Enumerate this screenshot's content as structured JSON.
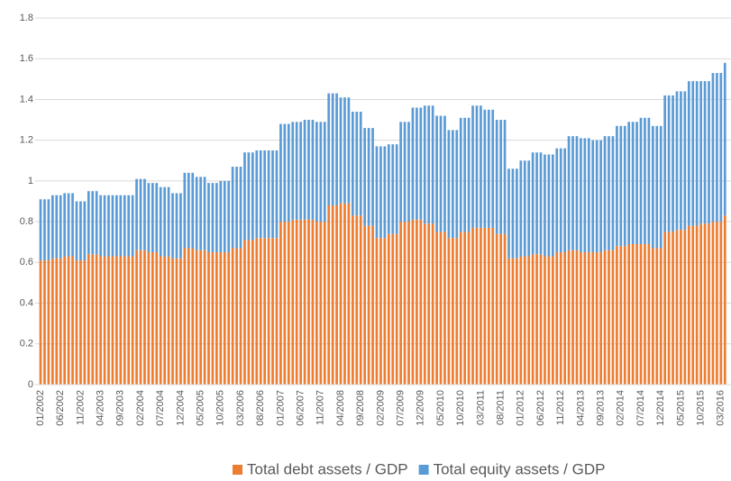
{
  "chart_data": {
    "type": "stacked_bar",
    "categories": [
      "01/2002",
      null,
      null,
      null,
      null,
      "06/2002",
      null,
      null,
      null,
      null,
      "11/2002",
      null,
      null,
      null,
      null,
      "04/2003",
      null,
      null,
      null,
      null,
      "09/2003",
      null,
      null,
      null,
      null,
      "02/2004",
      null,
      null,
      null,
      null,
      "07/2004",
      null,
      null,
      null,
      null,
      "12/2004",
      null,
      null,
      null,
      null,
      "05/2005",
      null,
      null,
      null,
      null,
      "10/2005",
      null,
      null,
      null,
      null,
      "03/2006",
      null,
      null,
      null,
      null,
      "08/2006",
      null,
      null,
      null,
      null,
      "01/2007",
      null,
      null,
      null,
      null,
      "06/2007",
      null,
      null,
      null,
      null,
      "11/2007",
      null,
      null,
      null,
      null,
      "04/2008",
      null,
      null,
      null,
      null,
      "09/2008",
      null,
      null,
      null,
      null,
      "02/2009",
      null,
      null,
      null,
      null,
      "07/2009",
      null,
      null,
      null,
      null,
      "12/2009",
      null,
      null,
      null,
      null,
      "05/2010",
      null,
      null,
      null,
      null,
      "10/2010",
      null,
      null,
      null,
      null,
      "03/2011",
      null,
      null,
      null,
      null,
      "08/2011",
      null,
      null,
      null,
      null,
      "01/2012",
      null,
      null,
      null,
      null,
      "06/2012",
      null,
      null,
      null,
      null,
      "11/2012",
      null,
      null,
      null,
      null,
      "04/2013",
      null,
      null,
      null,
      null,
      "09/2013",
      null,
      null,
      null,
      null,
      "02/2014",
      null,
      null,
      null,
      null,
      "07/2014",
      null,
      null,
      null,
      null,
      "12/2014",
      null,
      null,
      null,
      null,
      "05/2015",
      null,
      null,
      null,
      null,
      "10/2015",
      null,
      null,
      null,
      null,
      "03/2016",
      null
    ],
    "series": [
      {
        "name": "Total debt assets / GDP",
        "color": "#ed7d31",
        "values": [
          0.61,
          0.61,
          0.61,
          0.62,
          0.62,
          0.62,
          0.63,
          0.63,
          0.63,
          0.61,
          0.61,
          0.61,
          0.64,
          0.64,
          0.64,
          0.63,
          0.63,
          0.63,
          0.63,
          0.63,
          0.63,
          0.63,
          0.63,
          0.63,
          0.66,
          0.66,
          0.66,
          0.65,
          0.65,
          0.65,
          0.63,
          0.63,
          0.63,
          0.62,
          0.62,
          0.62,
          0.67,
          0.67,
          0.67,
          0.66,
          0.66,
          0.66,
          0.65,
          0.65,
          0.65,
          0.65,
          0.65,
          0.65,
          0.67,
          0.67,
          0.67,
          0.71,
          0.71,
          0.71,
          0.72,
          0.72,
          0.72,
          0.72,
          0.72,
          0.72,
          0.8,
          0.8,
          0.8,
          0.81,
          0.81,
          0.81,
          0.81,
          0.81,
          0.81,
          0.8,
          0.8,
          0.8,
          0.88,
          0.88,
          0.88,
          0.89,
          0.89,
          0.89,
          0.83,
          0.83,
          0.83,
          0.78,
          0.78,
          0.78,
          0.72,
          0.72,
          0.72,
          0.74,
          0.74,
          0.74,
          0.8,
          0.8,
          0.8,
          0.81,
          0.81,
          0.81,
          0.79,
          0.79,
          0.79,
          0.75,
          0.75,
          0.75,
          0.72,
          0.72,
          0.72,
          0.75,
          0.75,
          0.75,
          0.77,
          0.77,
          0.77,
          0.77,
          0.77,
          0.77,
          0.74,
          0.74,
          0.74,
          0.62,
          0.62,
          0.62,
          0.63,
          0.63,
          0.63,
          0.64,
          0.64,
          0.64,
          0.63,
          0.63,
          0.63,
          0.65,
          0.65,
          0.65,
          0.66,
          0.66,
          0.66,
          0.65,
          0.65,
          0.65,
          0.65,
          0.65,
          0.65,
          0.66,
          0.66,
          0.66,
          0.68,
          0.68,
          0.68,
          0.69,
          0.69,
          0.69,
          0.69,
          0.69,
          0.69,
          0.67,
          0.67,
          0.67,
          0.75,
          0.75,
          0.75,
          0.76,
          0.76,
          0.76,
          0.78,
          0.78,
          0.78,
          0.79,
          0.79,
          0.79,
          0.8,
          0.8,
          0.8,
          0.83
        ]
      },
      {
        "name": "Total equity assets / GDP",
        "color": "#5b9bd5",
        "values": [
          0.3,
          0.3,
          0.3,
          0.31,
          0.31,
          0.31,
          0.31,
          0.31,
          0.31,
          0.29,
          0.29,
          0.29,
          0.31,
          0.31,
          0.31,
          0.3,
          0.3,
          0.3,
          0.3,
          0.3,
          0.3,
          0.3,
          0.3,
          0.3,
          0.35,
          0.35,
          0.35,
          0.34,
          0.34,
          0.34,
          0.34,
          0.34,
          0.34,
          0.32,
          0.32,
          0.32,
          0.37,
          0.37,
          0.37,
          0.36,
          0.36,
          0.36,
          0.34,
          0.34,
          0.34,
          0.35,
          0.35,
          0.35,
          0.4,
          0.4,
          0.4,
          0.43,
          0.43,
          0.43,
          0.43,
          0.43,
          0.43,
          0.43,
          0.43,
          0.43,
          0.48,
          0.48,
          0.48,
          0.48,
          0.48,
          0.48,
          0.49,
          0.49,
          0.49,
          0.49,
          0.49,
          0.49,
          0.55,
          0.55,
          0.55,
          0.52,
          0.52,
          0.52,
          0.51,
          0.51,
          0.51,
          0.48,
          0.48,
          0.48,
          0.45,
          0.45,
          0.45,
          0.44,
          0.44,
          0.44,
          0.49,
          0.49,
          0.49,
          0.55,
          0.55,
          0.55,
          0.58,
          0.58,
          0.58,
          0.57,
          0.57,
          0.57,
          0.53,
          0.53,
          0.53,
          0.56,
          0.56,
          0.56,
          0.6,
          0.6,
          0.6,
          0.58,
          0.58,
          0.58,
          0.56,
          0.56,
          0.56,
          0.44,
          0.44,
          0.44,
          0.47,
          0.47,
          0.47,
          0.5,
          0.5,
          0.5,
          0.5,
          0.5,
          0.5,
          0.51,
          0.51,
          0.51,
          0.56,
          0.56,
          0.56,
          0.56,
          0.56,
          0.56,
          0.55,
          0.55,
          0.55,
          0.56,
          0.56,
          0.56,
          0.59,
          0.59,
          0.59,
          0.6,
          0.6,
          0.6,
          0.62,
          0.62,
          0.62,
          0.6,
          0.6,
          0.6,
          0.67,
          0.67,
          0.67,
          0.68,
          0.68,
          0.68,
          0.71,
          0.71,
          0.71,
          0.7,
          0.7,
          0.7,
          0.73,
          0.73,
          0.73,
          0.75
        ]
      }
    ],
    "ylim": [
      0,
      1.8
    ],
    "yticks": [
      0,
      0.2,
      0.4,
      0.6,
      0.8,
      1,
      1.2,
      1.4,
      1.6,
      1.8
    ],
    "grid": true,
    "legend": "bottom"
  }
}
